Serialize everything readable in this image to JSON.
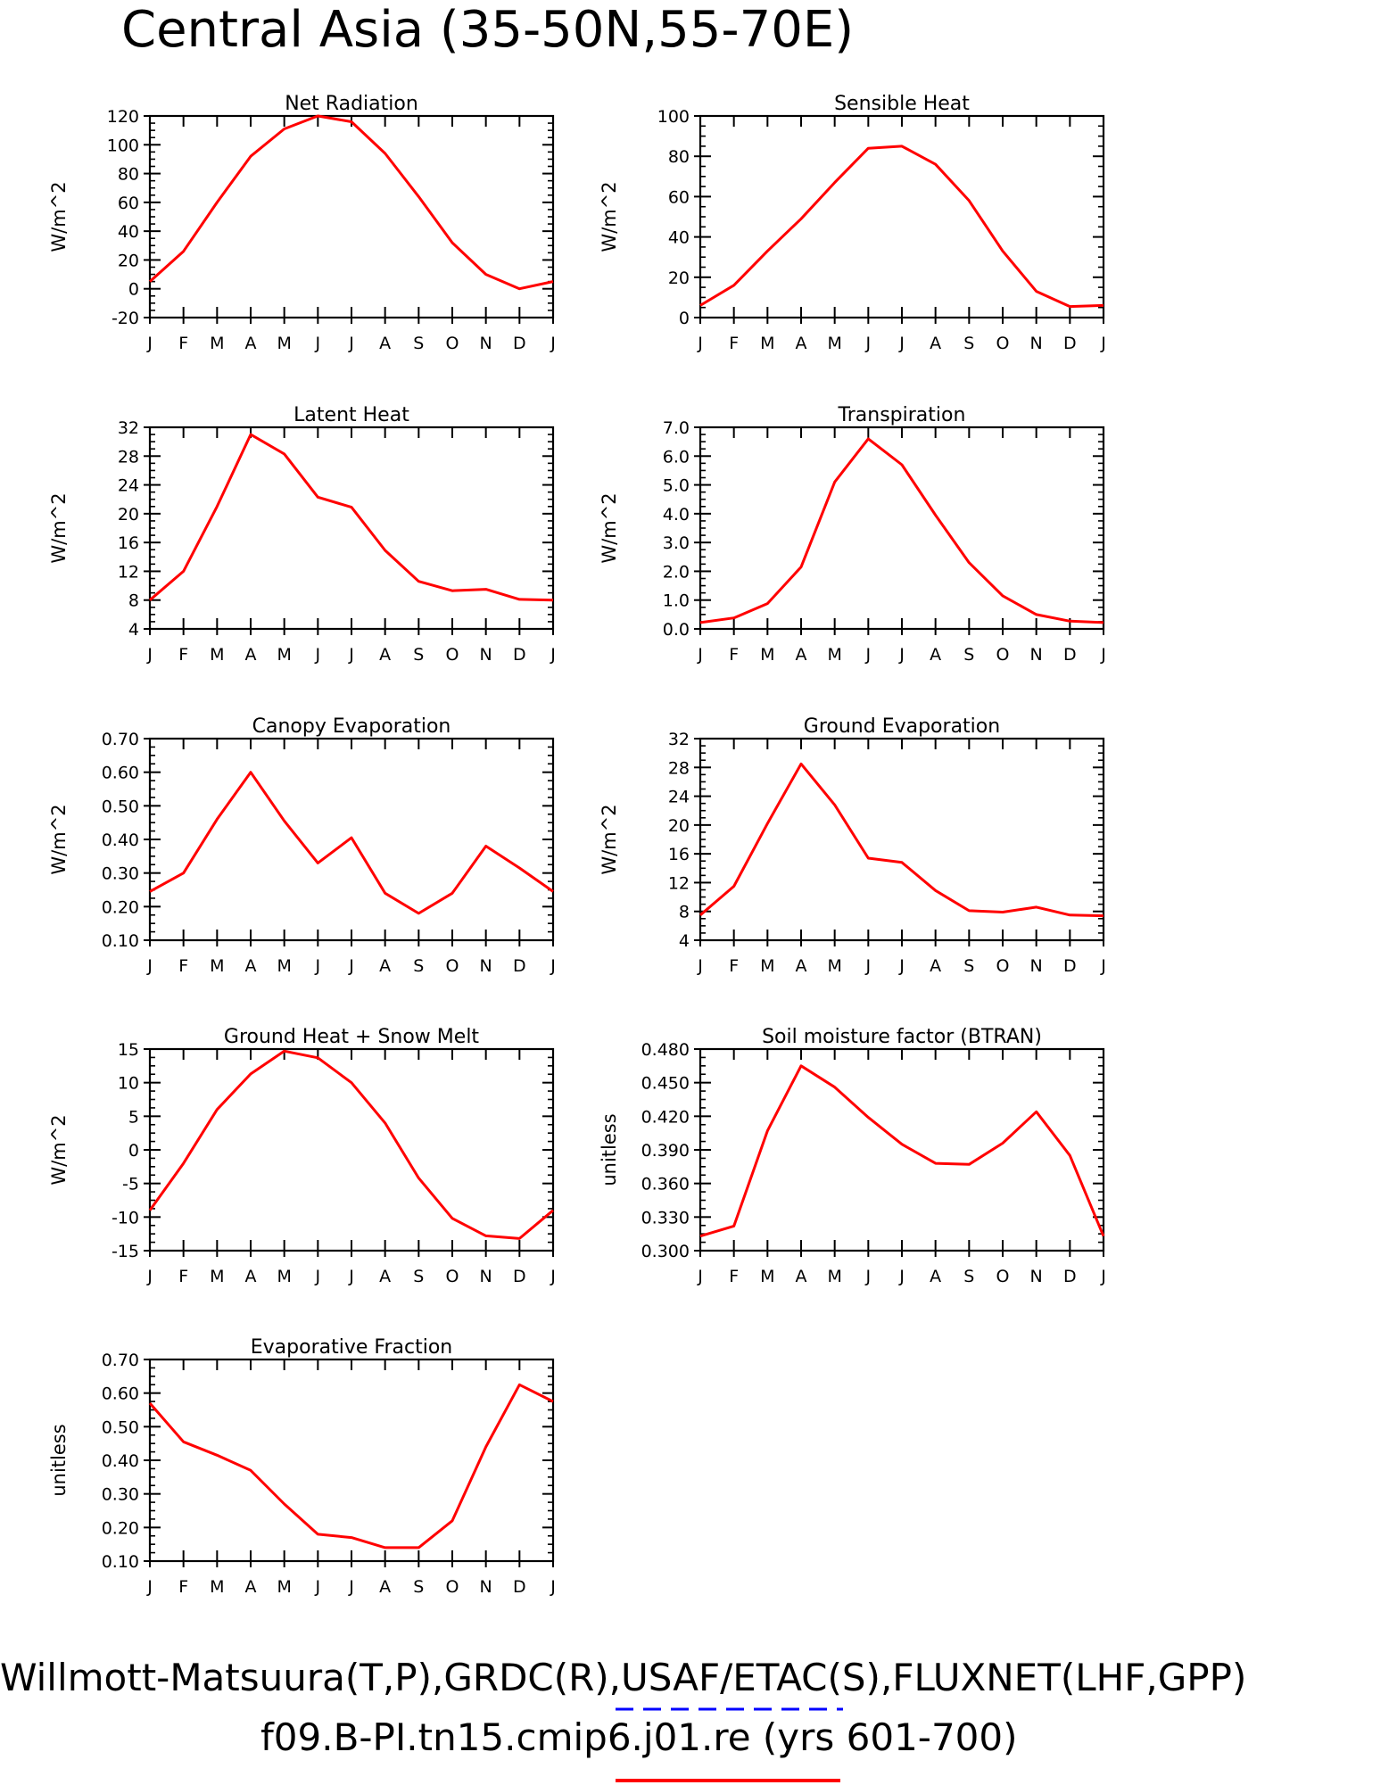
{
  "page": {
    "title": "Central Asia (35-50N,55-70E)",
    "footer_line1": "Willmott-Matsuura(T,P),GRDC(R),USAF/ETAC(S),FLUXNET(LHF,GPP)",
    "footer_line2": "f09.B-PI.tn15.cmip6.j01.re (yrs 601-700)",
    "colors": {
      "model": "#ff0000",
      "obs": "#0000ff"
    }
  },
  "chart_data": [
    {
      "type": "line",
      "title": "Net Radiation",
      "ylabel": "W/m^2",
      "ylim": [
        -20,
        120
      ],
      "yticks": [
        "-20",
        "0",
        "20",
        "40",
        "60",
        "80",
        "100",
        "120"
      ],
      "categories": [
        "J",
        "F",
        "M",
        "A",
        "M",
        "J",
        "J",
        "A",
        "S",
        "O",
        "N",
        "D",
        "J"
      ],
      "series": [
        {
          "values": [
            5,
            26,
            60,
            92,
            111,
            120,
            116,
            94,
            64,
            32,
            10,
            0,
            5
          ]
        }
      ]
    },
    {
      "type": "line",
      "title": "Sensible Heat",
      "ylabel": "W/m^2",
      "ylim": [
        0,
        100
      ],
      "yticks": [
        "0",
        "20",
        "40",
        "60",
        "80",
        "100"
      ],
      "categories": [
        "J",
        "F",
        "M",
        "A",
        "M",
        "J",
        "J",
        "A",
        "S",
        "O",
        "N",
        "D",
        "J"
      ],
      "series": [
        {
          "values": [
            6,
            16,
            33,
            49,
            67,
            84,
            85,
            76,
            58,
            33,
            13,
            5.5,
            6
          ]
        }
      ]
    },
    {
      "type": "line",
      "title": "Latent Heat",
      "ylabel": "W/m^2",
      "ylim": [
        4,
        32
      ],
      "yticks": [
        "4",
        "8",
        "12",
        "16",
        "20",
        "24",
        "28",
        "32"
      ],
      "categories": [
        "J",
        "F",
        "M",
        "A",
        "M",
        "J",
        "J",
        "A",
        "S",
        "O",
        "N",
        "D",
        "J"
      ],
      "series": [
        {
          "values": [
            8,
            12,
            21,
            31,
            28.3,
            22.3,
            20.9,
            14.9,
            10.6,
            9.3,
            9.5,
            8.1,
            8
          ]
        }
      ]
    },
    {
      "type": "line",
      "title": "Transpiration",
      "ylabel": "W/m^2",
      "ylim": [
        0,
        7
      ],
      "yticks": [
        "0.0",
        "1.0",
        "2.0",
        "3.0",
        "4.0",
        "5.0",
        "6.0",
        "7.0"
      ],
      "categories": [
        "J",
        "F",
        "M",
        "A",
        "M",
        "J",
        "J",
        "A",
        "S",
        "O",
        "N",
        "D",
        "J"
      ],
      "series": [
        {
          "values": [
            0.22,
            0.38,
            0.88,
            2.15,
            5.1,
            6.6,
            5.7,
            3.95,
            2.3,
            1.15,
            0.5,
            0.27,
            0.22
          ]
        }
      ]
    },
    {
      "type": "line",
      "title": "Canopy Evaporation",
      "ylabel": "W/m^2",
      "ylim": [
        0.1,
        0.7
      ],
      "yticks": [
        "0.10",
        "0.20",
        "0.30",
        "0.40",
        "0.50",
        "0.60",
        "0.70"
      ],
      "categories": [
        "J",
        "F",
        "M",
        "A",
        "M",
        "J",
        "J",
        "A",
        "S",
        "O",
        "N",
        "D",
        "J"
      ],
      "series": [
        {
          "values": [
            0.245,
            0.3,
            0.46,
            0.6,
            0.455,
            0.33,
            0.405,
            0.24,
            0.18,
            0.24,
            0.38,
            0.315,
            0.245
          ]
        }
      ]
    },
    {
      "type": "line",
      "title": "Ground Evaporation",
      "ylabel": "W/m^2",
      "ylim": [
        4,
        32
      ],
      "yticks": [
        "4",
        "8",
        "12",
        "16",
        "20",
        "24",
        "28",
        "32"
      ],
      "categories": [
        "J",
        "F",
        "M",
        "A",
        "M",
        "J",
        "J",
        "A",
        "S",
        "O",
        "N",
        "D",
        "J"
      ],
      "series": [
        {
          "values": [
            7.5,
            11.5,
            20.2,
            28.5,
            22.8,
            15.4,
            14.8,
            10.9,
            8.1,
            7.9,
            8.6,
            7.5,
            7.4
          ]
        }
      ]
    },
    {
      "type": "line",
      "title": "Ground Heat + Snow Melt",
      "ylabel": "W/m^2",
      "ylim": [
        -15,
        15
      ],
      "yticks": [
        "-15",
        "-10",
        "-5",
        "0",
        "5",
        "10",
        "15"
      ],
      "categories": [
        "J",
        "F",
        "M",
        "A",
        "M",
        "J",
        "J",
        "A",
        "S",
        "O",
        "N",
        "D",
        "J"
      ],
      "series": [
        {
          "values": [
            -9,
            -2,
            6,
            11.3,
            14.7,
            13.7,
            10,
            4,
            -4.2,
            -10.2,
            -12.8,
            -13.2,
            -9
          ]
        }
      ]
    },
    {
      "type": "line",
      "title": "Soil moisture factor (BTRAN)",
      "ylabel": "unitless",
      "ylim": [
        0.3,
        0.48
      ],
      "yticks": [
        "0.300",
        "0.330",
        "0.360",
        "0.390",
        "0.420",
        "0.450",
        "0.480"
      ],
      "categories": [
        "J",
        "F",
        "M",
        "A",
        "M",
        "J",
        "J",
        "A",
        "S",
        "O",
        "N",
        "D",
        "J"
      ],
      "series": [
        {
          "values": [
            0.313,
            0.322,
            0.407,
            0.465,
            0.446,
            0.419,
            0.395,
            0.378,
            0.377,
            0.396,
            0.424,
            0.385,
            0.313
          ]
        }
      ]
    },
    {
      "type": "line",
      "title": "Evaporative Fraction",
      "ylabel": "unitless",
      "ylim": [
        0.1,
        0.7
      ],
      "yticks": [
        "0.10",
        "0.20",
        "0.30",
        "0.40",
        "0.50",
        "0.60",
        "0.70"
      ],
      "categories": [
        "J",
        "F",
        "M",
        "A",
        "M",
        "J",
        "J",
        "A",
        "S",
        "O",
        "N",
        "D",
        "J"
      ],
      "series": [
        {
          "values": [
            0.57,
            0.455,
            0.415,
            0.37,
            0.27,
            0.18,
            0.17,
            0.14,
            0.14,
            0.22,
            0.44,
            0.625,
            0.575
          ]
        }
      ]
    }
  ]
}
